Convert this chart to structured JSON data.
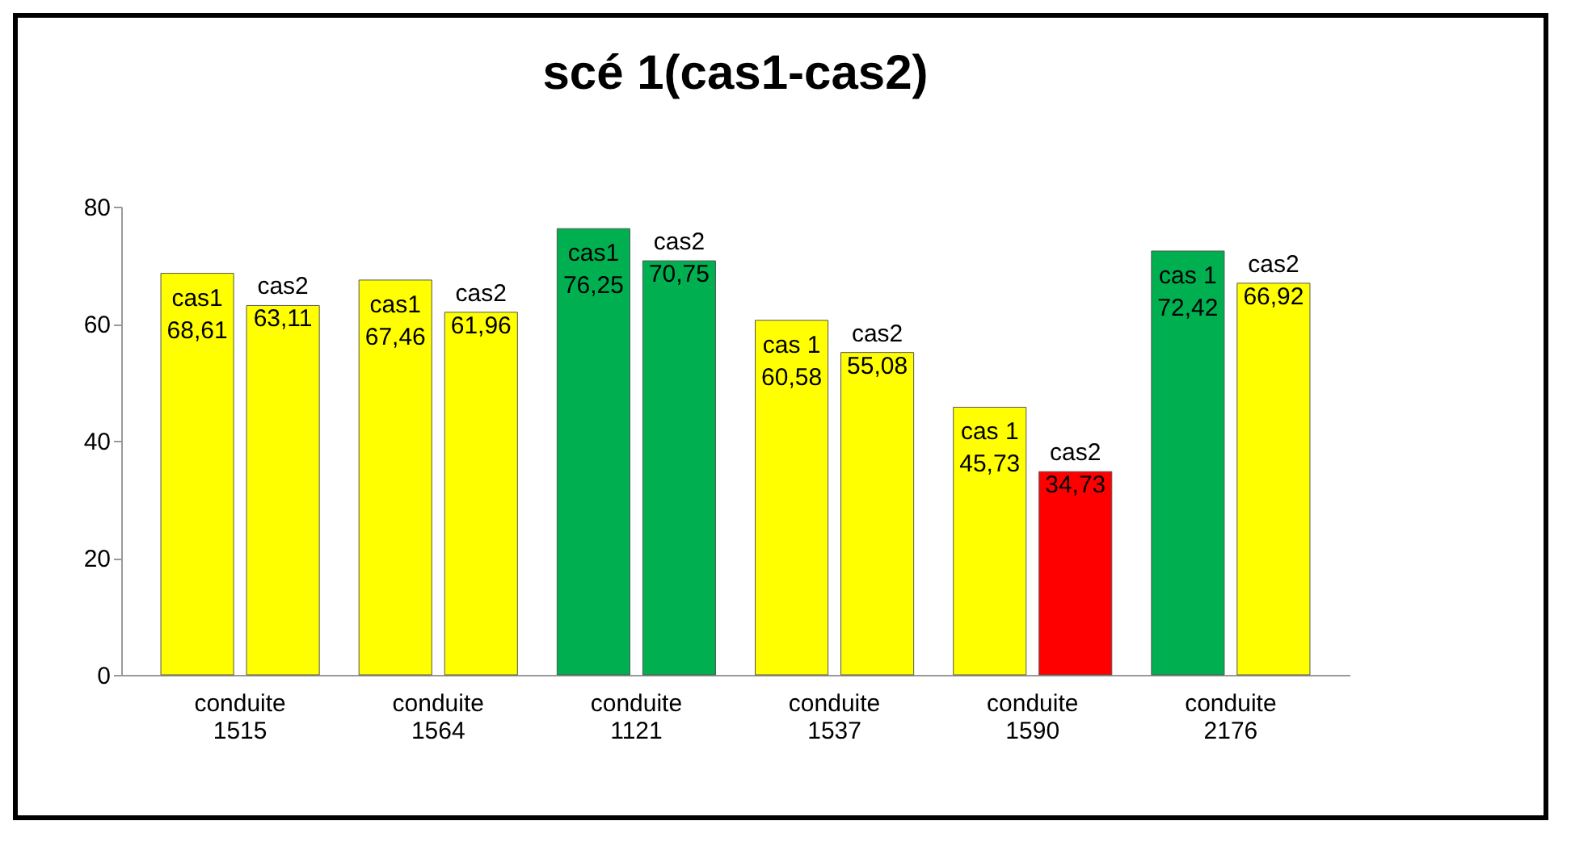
{
  "chart_data": {
    "type": "bar",
    "title": "scé 1(cas1-cas2)",
    "categories": [
      "conduite 1515",
      "conduite 1564",
      "conduite 1121",
      "conduite 1537",
      "conduite 1590",
      "conduite 2176"
    ],
    "series": [
      {
        "values": [
          68.61,
          67.46,
          76.25,
          60.58,
          45.73,
          72.42
        ],
        "colors": [
          "#ffff00",
          "#ffff00",
          "#00b050",
          "#ffff00",
          "#ffff00",
          "#00b050"
        ],
        "value_labels": [
          "cas1\n68,61",
          "cas1\n67,46",
          "cas1\n76,25",
          "cas 1\n60,58",
          "cas 1\n45,73",
          "cas 1\n72,42"
        ]
      },
      {
        "values": [
          63.11,
          61.96,
          70.75,
          55.08,
          34.73,
          66.92
        ],
        "colors": [
          "#ffff00",
          "#ffff00",
          "#00b050",
          "#ffff00",
          "#ff0000",
          "#ffff00"
        ],
        "value_labels": [
          "cas2\n63,11",
          "cas2\n61,96",
          "cas2\n70,75",
          "cas2\n55,08",
          "cas2\n34,73",
          "cas2\n66,92"
        ]
      }
    ],
    "ylim": [
      0,
      80
    ],
    "yticks": [
      0,
      20,
      40,
      60,
      80
    ],
    "grid": false
  }
}
